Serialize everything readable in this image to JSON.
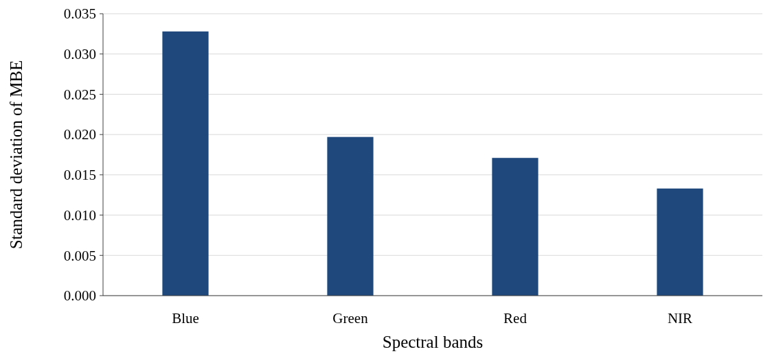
{
  "chart_data": {
    "type": "bar",
    "xlabel": "Spectral bands",
    "ylabel": "Standard deviation of MBE",
    "categories": [
      "Blue",
      "Green",
      "Red",
      "NIR"
    ],
    "values": [
      0.0328,
      0.0197,
      0.0171,
      0.0133
    ],
    "color": "#1f497d",
    "ylim": [
      0,
      0.035
    ],
    "yticks": [
      {
        "value": 0,
        "label": "0.000"
      },
      {
        "value": 0.005,
        "label": "0.005"
      },
      {
        "value": 0.01,
        "label": "0.010"
      },
      {
        "value": 0.015,
        "label": "0.015"
      },
      {
        "value": 0.02,
        "label": "0.020"
      },
      {
        "value": 0.025,
        "label": "0.025"
      },
      {
        "value": 0.03,
        "label": "0.030"
      },
      {
        "value": 0.035,
        "label": "0.035"
      }
    ],
    "grid": "y"
  }
}
